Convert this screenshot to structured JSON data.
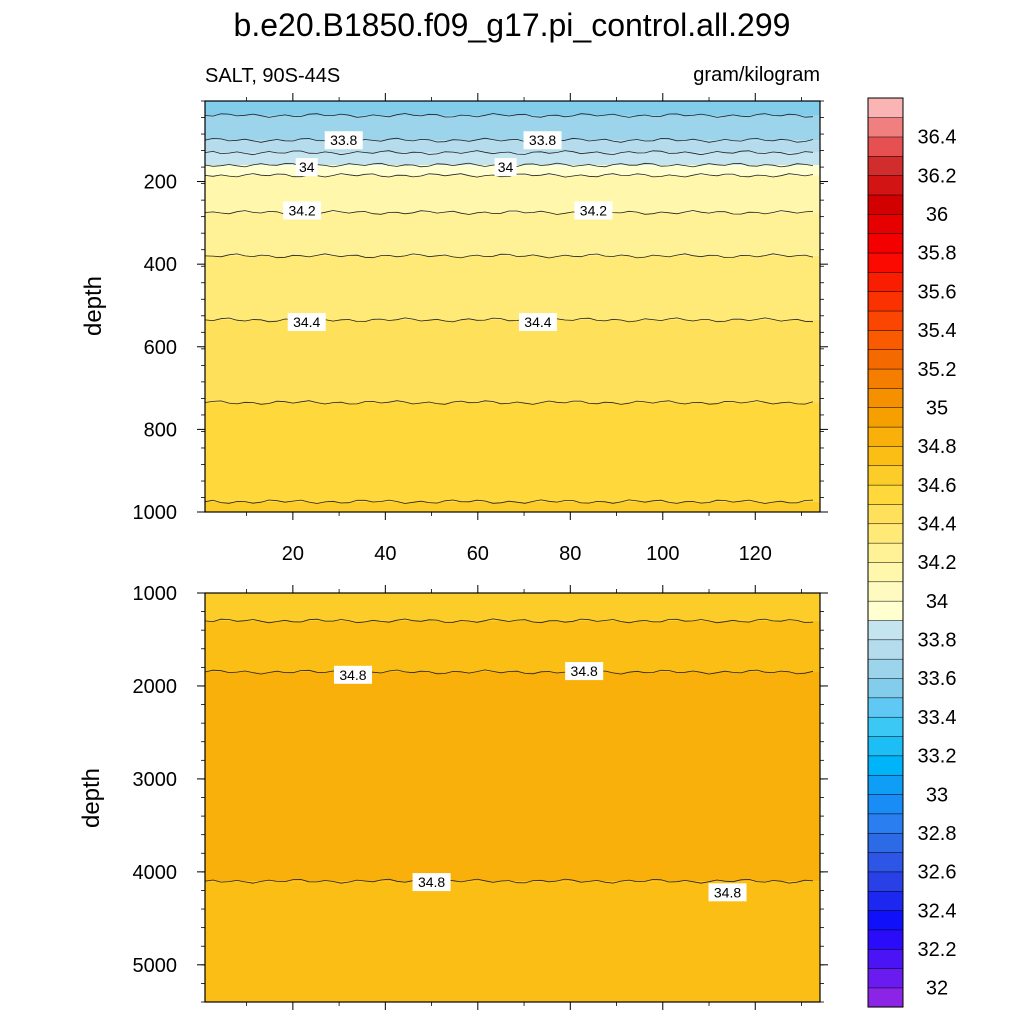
{
  "chart_data": {
    "type": "heatmap",
    "title": "b.e20.B1850.f09_g17.pi_control.all.299",
    "left_string": "SALT, 90S-44S",
    "right_string": "gram/kilogram",
    "colorbar": {
      "labels": [
        "32",
        "32.2",
        "32.4",
        "32.6",
        "32.8",
        "33",
        "33.2",
        "33.4",
        "33.6",
        "33.8",
        "34",
        "34.2",
        "34.4",
        "34.6",
        "34.8",
        "35",
        "35.2",
        "35.4",
        "35.6",
        "35.8",
        "36",
        "36.2",
        "36.4"
      ],
      "colors": [
        "#8c24e6",
        "#6a1cf0",
        "#4b14f5",
        "#2b0cfa",
        "#1010fa",
        "#1c28f0",
        "#2840e6",
        "#2d55e6",
        "#2d6ae6",
        "#2a7ef0",
        "#1a8cf5",
        "#0f9ef5",
        "#00b4fa",
        "#1cbef5",
        "#3cc8f5",
        "#60c8f5",
        "#82ccec",
        "#9cd4ec",
        "#b4dcec",
        "#c4e4f0",
        "#ffffd0",
        "#fffac0",
        "#fff8ac",
        "#fff296",
        "#ffea78",
        "#ffe05a",
        "#ffd83c",
        "#fccc28",
        "#fabe14",
        "#fab00a",
        "#f5a000",
        "#f59000",
        "#f57d00",
        "#f56a00",
        "#fa5a00",
        "#fa4600",
        "#fa3200",
        "#fa1e00",
        "#fa0a00",
        "#f50000",
        "#e60000",
        "#d20000",
        "#d21414",
        "#d22d2d",
        "#e65050",
        "#f08080",
        "#fab4b4"
      ]
    },
    "panels": [
      {
        "xlim": [
          1,
          134
        ],
        "ylim": [
          1000,
          5
        ],
        "ylabel": "depth",
        "xticks": [
          20,
          40,
          60,
          80,
          100,
          120
        ],
        "yticks": [
          200,
          400,
          600,
          800,
          1000
        ],
        "bands": [
          {
            "top": 5,
            "bottom": 40,
            "value": 33.55
          },
          {
            "top": 40,
            "bottom": 100,
            "value": 33.65
          },
          {
            "top": 100,
            "bottom": 130,
            "value": 33.75
          },
          {
            "top": 130,
            "bottom": 160,
            "value": 33.85
          },
          {
            "top": 160,
            "bottom": 185,
            "value": 33.95
          },
          {
            "top": 185,
            "bottom": 275,
            "value": 34.1
          },
          {
            "top": 275,
            "bottom": 380,
            "value": 34.25
          },
          {
            "top": 380,
            "bottom": 535,
            "value": 34.35
          },
          {
            "top": 535,
            "bottom": 735,
            "value": 34.45
          },
          {
            "top": 735,
            "bottom": 975,
            "value": 34.55
          },
          {
            "top": 975,
            "bottom": 1000,
            "value": 34.65
          }
        ],
        "contour_labels": [
          {
            "x": 31,
            "y": 100,
            "text": "33.8"
          },
          {
            "x": 74,
            "y": 100,
            "text": "33.8"
          },
          {
            "x": 23,
            "y": 165,
            "text": "34"
          },
          {
            "x": 66,
            "y": 165,
            "text": "34"
          },
          {
            "x": 22,
            "y": 270,
            "text": "34.2"
          },
          {
            "x": 85,
            "y": 270,
            "text": "34.2"
          },
          {
            "x": 23,
            "y": 540,
            "text": "34.4"
          },
          {
            "x": 73,
            "y": 540,
            "text": "34.4"
          }
        ]
      },
      {
        "xlim": [
          1,
          134
        ],
        "ylim": [
          5400,
          1000
        ],
        "ylabel": "depth",
        "xticks": [
          20,
          40,
          60,
          80,
          100,
          120
        ],
        "yticks": [
          1000,
          2000,
          3000,
          4000,
          5000
        ],
        "bands": [
          {
            "top": 1000,
            "bottom": 1300,
            "value": 34.65
          },
          {
            "top": 1300,
            "bottom": 1850,
            "value": 34.75
          },
          {
            "top": 1850,
            "bottom": 4100,
            "value": 34.85
          },
          {
            "top": 4100,
            "bottom": 5400,
            "value": 34.75
          }
        ],
        "contour_labels": [
          {
            "x": 33,
            "y": 1880,
            "text": "34.8"
          },
          {
            "x": 83,
            "y": 1840,
            "text": "34.8"
          },
          {
            "x": 50,
            "y": 4110,
            "text": "34.8"
          },
          {
            "x": 114,
            "y": 4220,
            "text": "34.8"
          }
        ]
      }
    ]
  }
}
